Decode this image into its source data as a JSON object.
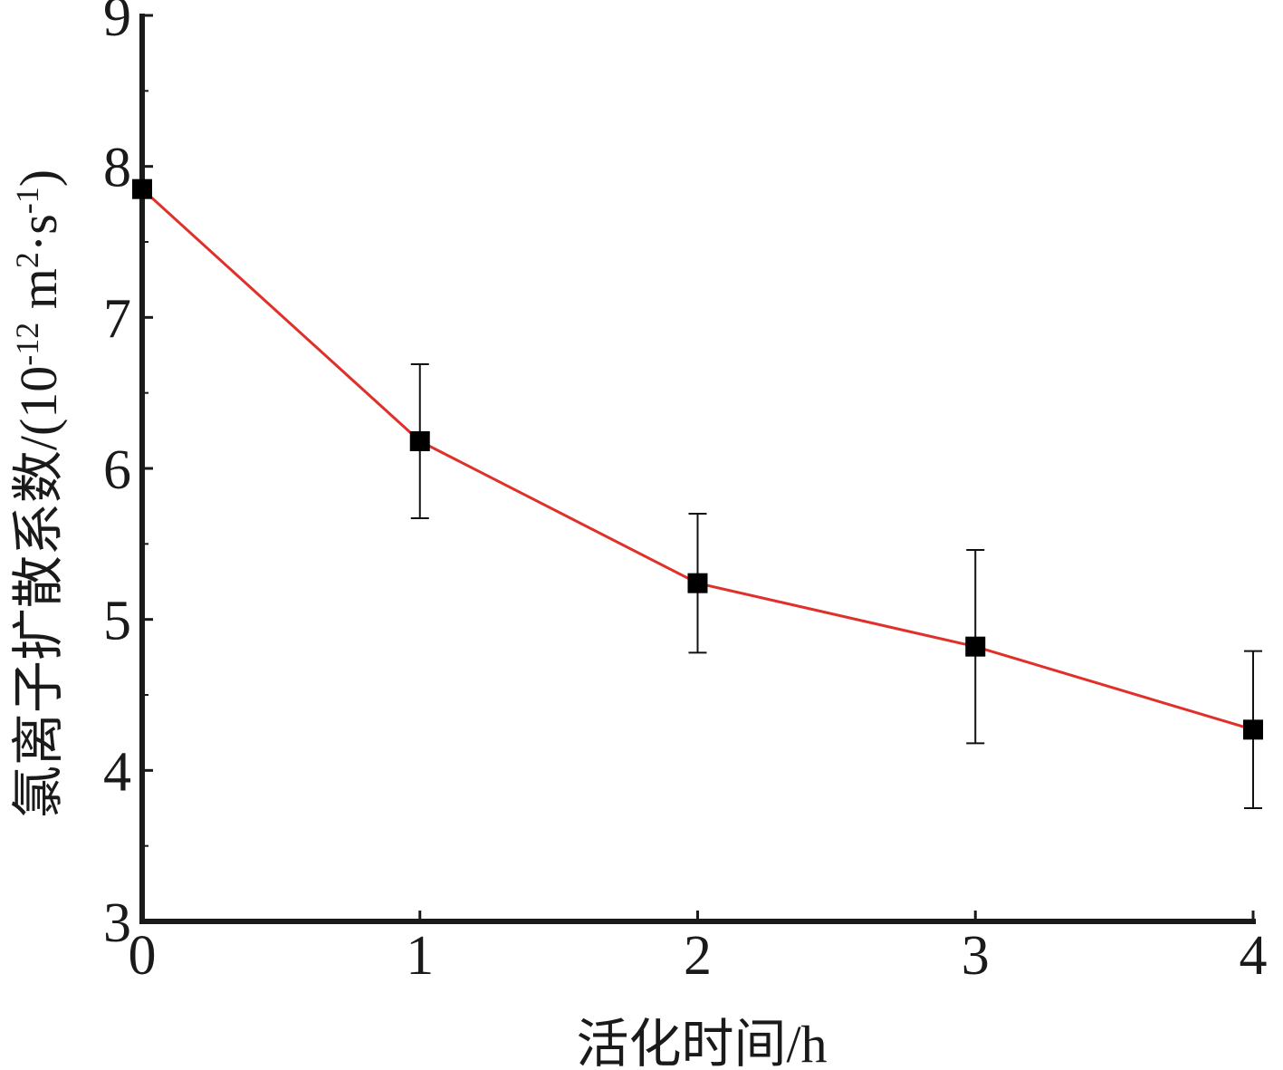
{
  "chart_data": {
    "type": "line",
    "title": "",
    "xlabel": "活化时间/h",
    "ylabel": {
      "main": "氯离子扩散系数/(10",
      "exp1": "-12",
      "mid": " m",
      "exp2": "2",
      "dot": "·s",
      "exp3": "-1",
      "end": ")"
    },
    "xlim": [
      0,
      4
    ],
    "ylim": [
      3,
      9
    ],
    "xticks": [
      0,
      1,
      2,
      3,
      4
    ],
    "yticks": [
      3,
      4,
      5,
      6,
      7,
      8,
      9
    ],
    "grid": false,
    "legend": "none",
    "series": [
      {
        "x": [
          0,
          1,
          2,
          3,
          4
        ],
        "y": [
          7.85,
          6.18,
          5.24,
          4.82,
          4.27
        ],
        "error": [
          0,
          0.51,
          0.46,
          0.64,
          0.52
        ],
        "line_color": "#e0302a",
        "marker": "square",
        "marker_color": "#000000"
      }
    ]
  }
}
